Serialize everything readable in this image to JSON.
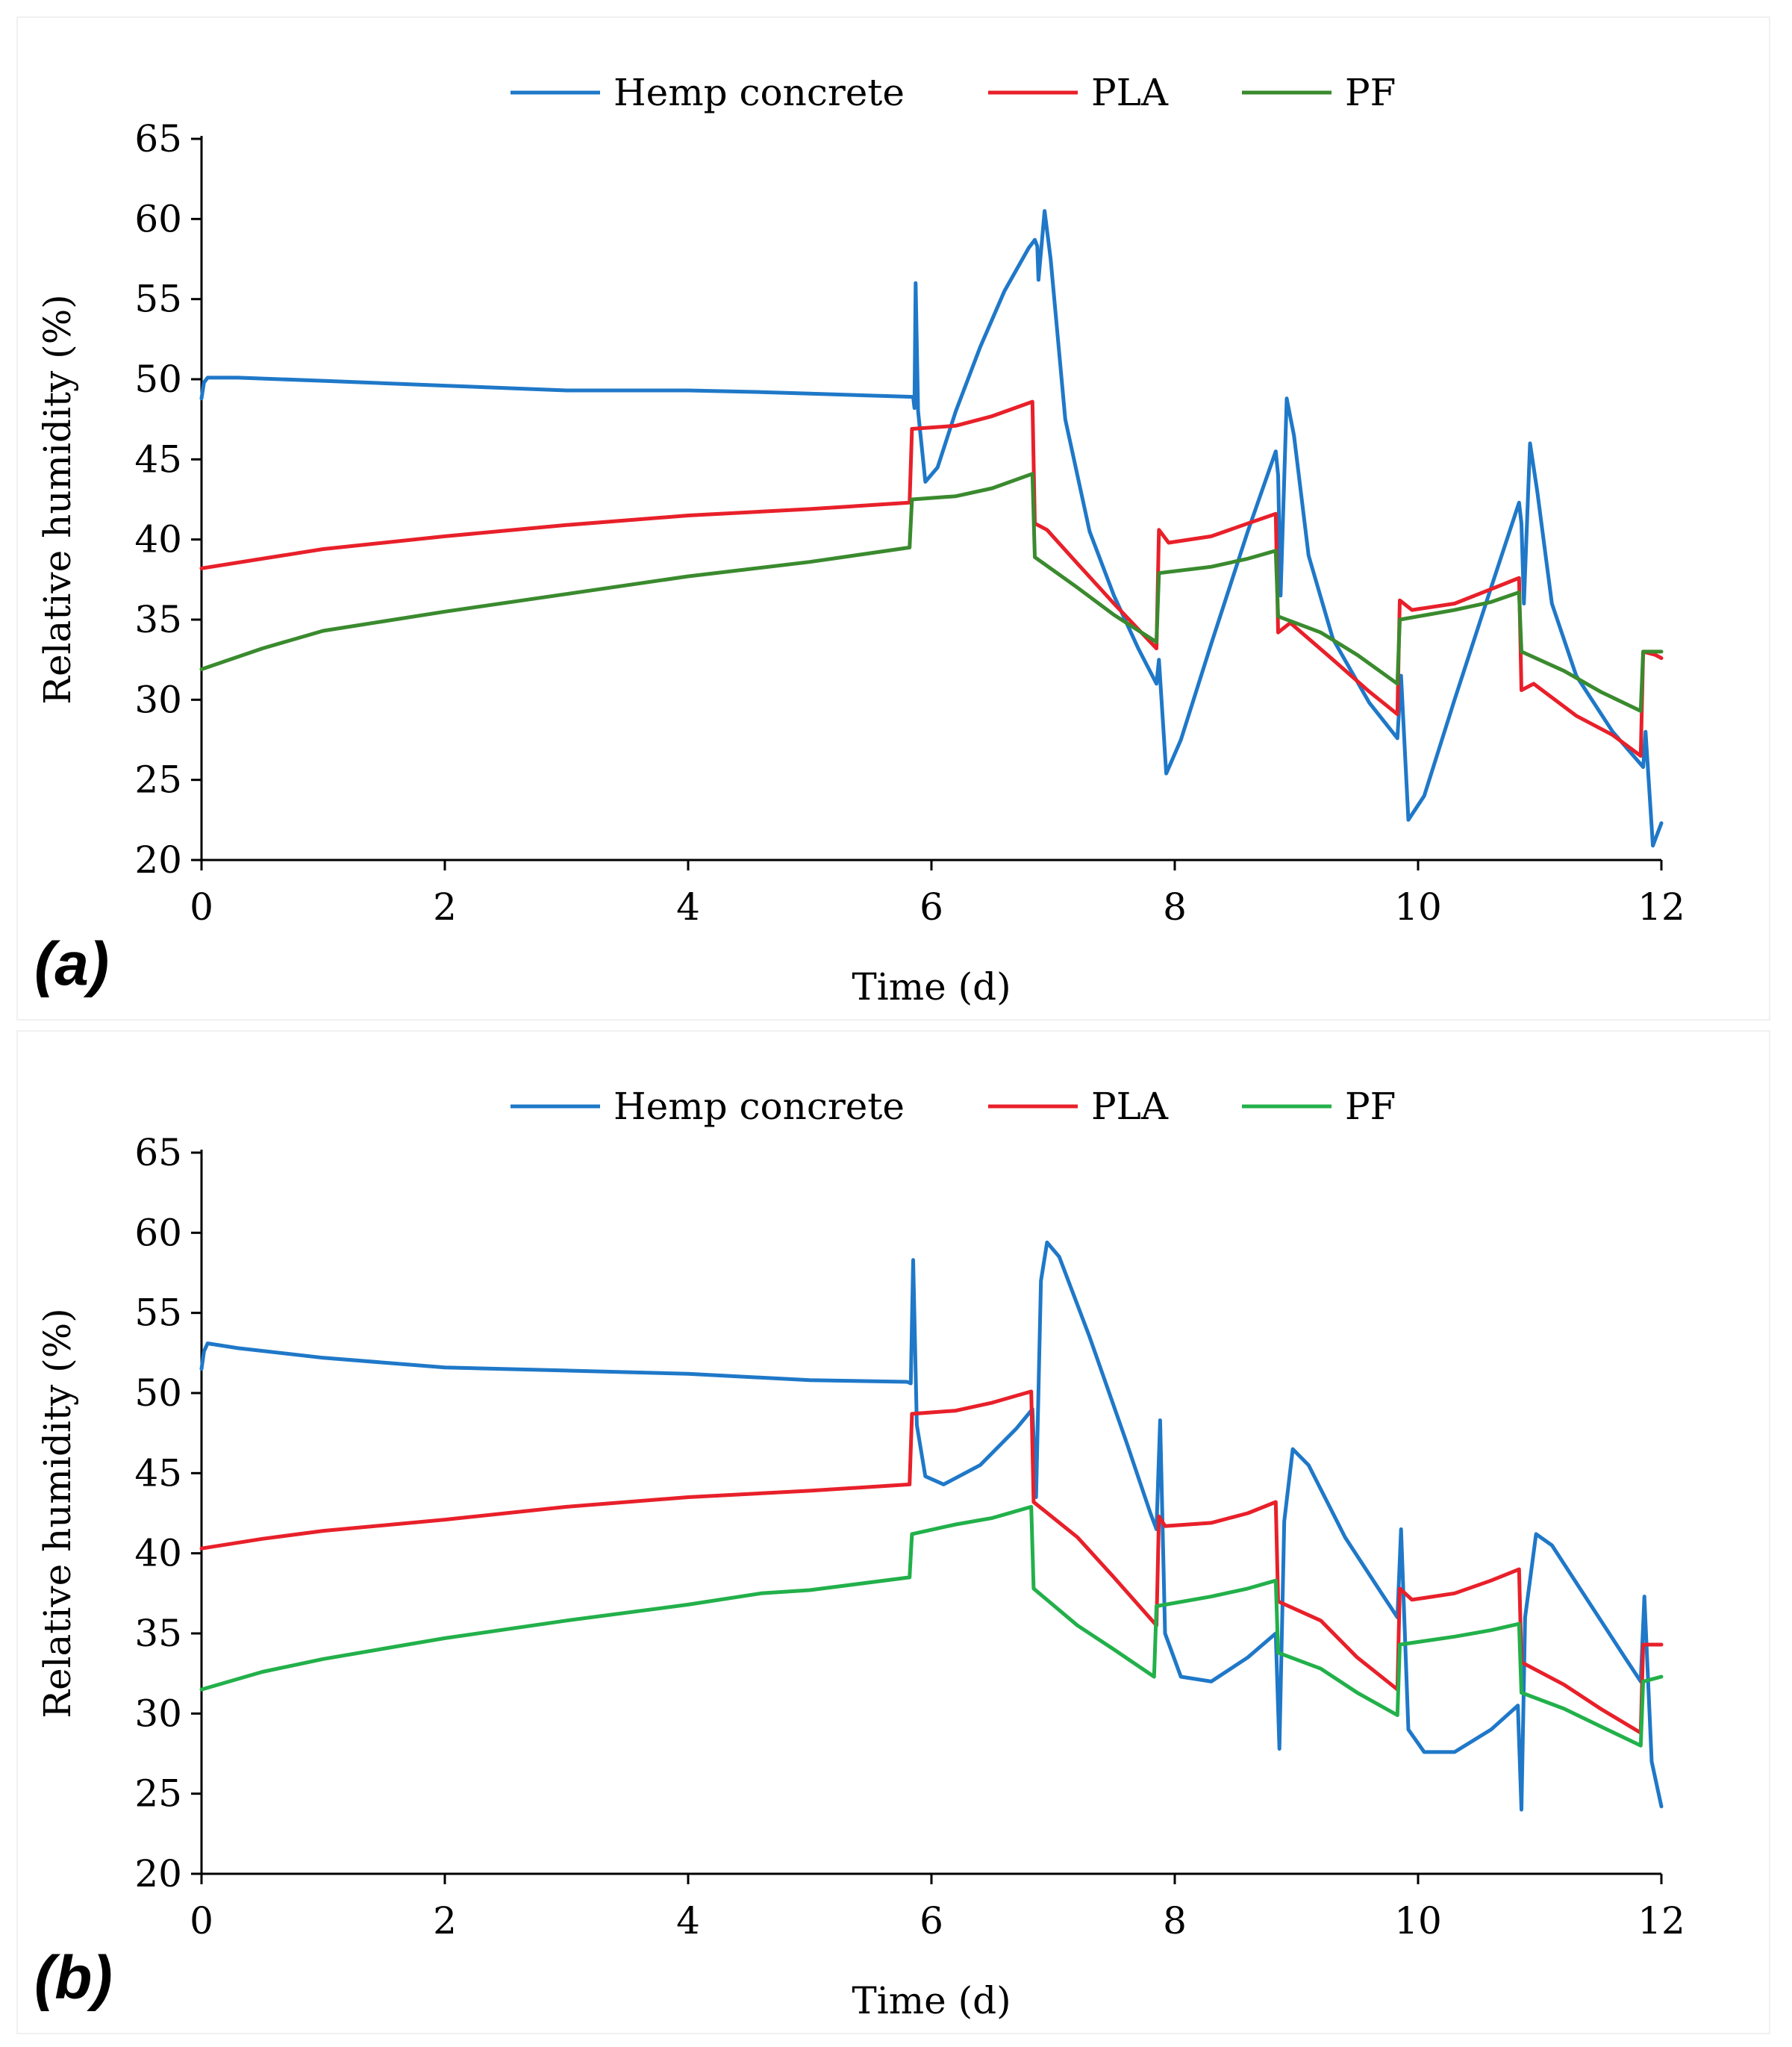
{
  "chart_data": [
    {
      "type": "line",
      "panel_label": "(a)",
      "xlabel": "Time (d)",
      "ylabel": "Relative humidity (%)",
      "xlim": [
        0,
        12
      ],
      "ylim": [
        20,
        65
      ],
      "xticks": [
        0,
        2,
        4,
        6,
        8,
        10,
        12
      ],
      "yticks": [
        20,
        25,
        30,
        35,
        40,
        45,
        50,
        55,
        60,
        65
      ],
      "grid": false,
      "legend_position": "top",
      "series": [
        {
          "name": "Hemp concrete",
          "color": "#1f78c8",
          "points": [
            [
              0,
              48.8
            ],
            [
              0.02,
              49.8
            ],
            [
              0.05,
              50.1
            ],
            [
              0.3,
              50.1
            ],
            [
              1,
              49.9
            ],
            [
              2,
              49.6
            ],
            [
              3,
              49.3
            ],
            [
              4,
              49.3
            ],
            [
              4.6,
              49.2
            ],
            [
              5,
              49.1
            ],
            [
              5.85,
              48.9
            ],
            [
              5.86,
              48.2
            ],
            [
              5.87,
              56
            ],
            [
              5.89,
              48
            ],
            [
              5.95,
              43.6
            ],
            [
              6.05,
              44.5
            ],
            [
              6.2,
              48
            ],
            [
              6.4,
              52
            ],
            [
              6.6,
              55.5
            ],
            [
              6.8,
              58.2
            ],
            [
              6.85,
              58.7
            ],
            [
              6.87,
              58.3
            ],
            [
              6.88,
              56.2
            ],
            [
              6.93,
              60.5
            ],
            [
              6.98,
              57.5
            ],
            [
              7.1,
              47.5
            ],
            [
              7.3,
              40.5
            ],
            [
              7.5,
              36.5
            ],
            [
              7.7,
              33.2
            ],
            [
              7.85,
              31
            ],
            [
              7.87,
              32.5
            ],
            [
              7.93,
              25.4
            ],
            [
              8.05,
              27.5
            ],
            [
              8.3,
              33.5
            ],
            [
              8.6,
              40.5
            ],
            [
              8.83,
              45.5
            ],
            [
              8.85,
              44
            ],
            [
              8.87,
              36.5
            ],
            [
              8.92,
              48.8
            ],
            [
              8.98,
              46.5
            ],
            [
              9.1,
              39
            ],
            [
              9.3,
              33.8
            ],
            [
              9.6,
              29.8
            ],
            [
              9.83,
              27.6
            ],
            [
              9.86,
              31.5
            ],
            [
              9.92,
              22.5
            ],
            [
              10.05,
              24
            ],
            [
              10.3,
              30
            ],
            [
              10.6,
              37
            ],
            [
              10.83,
              42.3
            ],
            [
              10.85,
              41
            ],
            [
              10.87,
              36
            ],
            [
              10.92,
              46
            ],
            [
              10.98,
              43
            ],
            [
              11.1,
              36
            ],
            [
              11.3,
              31.5
            ],
            [
              11.6,
              28
            ],
            [
              11.85,
              25.8
            ],
            [
              11.87,
              28
            ],
            [
              11.93,
              20.9
            ],
            [
              12,
              22.3
            ]
          ]
        },
        {
          "name": "PLA",
          "color": "#e8202a",
          "points": [
            [
              0,
              38.2
            ],
            [
              0.5,
              38.8
            ],
            [
              1,
              39.4
            ],
            [
              2,
              40.2
            ],
            [
              3,
              40.9
            ],
            [
              4,
              41.5
            ],
            [
              5,
              41.9
            ],
            [
              5.82,
              42.3
            ],
            [
              5.84,
              46.9
            ],
            [
              6.2,
              47.1
            ],
            [
              6.5,
              47.7
            ],
            [
              6.83,
              48.6
            ],
            [
              6.85,
              41
            ],
            [
              6.95,
              40.6
            ],
            [
              7.2,
              38.5
            ],
            [
              7.5,
              36
            ],
            [
              7.85,
              33.2
            ],
            [
              7.87,
              40.6
            ],
            [
              7.95,
              39.8
            ],
            [
              8.3,
              40.2
            ],
            [
              8.6,
              41
            ],
            [
              8.83,
              41.6
            ],
            [
              8.85,
              34.2
            ],
            [
              8.95,
              34.8
            ],
            [
              9.3,
              32.5
            ],
            [
              9.6,
              30.5
            ],
            [
              9.83,
              29.1
            ],
            [
              9.85,
              36.2
            ],
            [
              9.95,
              35.6
            ],
            [
              10.3,
              36
            ],
            [
              10.6,
              36.9
            ],
            [
              10.83,
              37.6
            ],
            [
              10.85,
              30.6
            ],
            [
              10.95,
              31
            ],
            [
              11.3,
              29
            ],
            [
              11.6,
              27.8
            ],
            [
              11.83,
              26.5
            ],
            [
              11.85,
              33
            ],
            [
              11.95,
              32.8
            ],
            [
              12,
              32.6
            ]
          ]
        },
        {
          "name": "PF",
          "color": "#3a8a2e",
          "points": [
            [
              0,
              31.9
            ],
            [
              0.5,
              33.2
            ],
            [
              1,
              34.3
            ],
            [
              2,
              35.5
            ],
            [
              3,
              36.6
            ],
            [
              4,
              37.7
            ],
            [
              5,
              38.6
            ],
            [
              5.82,
              39.5
            ],
            [
              5.84,
              42.5
            ],
            [
              6.2,
              42.7
            ],
            [
              6.5,
              43.2
            ],
            [
              6.83,
              44.1
            ],
            [
              6.85,
              38.9
            ],
            [
              7.2,
              37
            ],
            [
              7.5,
              35.3
            ],
            [
              7.85,
              33.6
            ],
            [
              7.87,
              37.9
            ],
            [
              8.3,
              38.3
            ],
            [
              8.6,
              38.8
            ],
            [
              8.83,
              39.3
            ],
            [
              8.85,
              35.2
            ],
            [
              9.2,
              34.2
            ],
            [
              9.5,
              32.8
            ],
            [
              9.83,
              31
            ],
            [
              9.85,
              35
            ],
            [
              10.3,
              35.6
            ],
            [
              10.6,
              36.1
            ],
            [
              10.83,
              36.7
            ],
            [
              10.85,
              33
            ],
            [
              11.2,
              31.8
            ],
            [
              11.5,
              30.5
            ],
            [
              11.83,
              29.3
            ],
            [
              11.85,
              33
            ],
            [
              12,
              33
            ]
          ]
        }
      ]
    },
    {
      "type": "line",
      "panel_label": "(b)",
      "xlabel": "Time (d)",
      "ylabel": "Relative humidity (%)",
      "xlim": [
        0,
        12
      ],
      "ylim": [
        20,
        65
      ],
      "xticks": [
        0,
        2,
        4,
        6,
        8,
        10,
        12
      ],
      "yticks": [
        20,
        25,
        30,
        35,
        40,
        45,
        50,
        55,
        60,
        65
      ],
      "grid": false,
      "legend_position": "top",
      "series": [
        {
          "name": "Hemp concrete",
          "color": "#1f78c8",
          "points": [
            [
              0,
              51.5
            ],
            [
              0.02,
              52.6
            ],
            [
              0.05,
              53.1
            ],
            [
              0.3,
              52.8
            ],
            [
              1,
              52.2
            ],
            [
              2,
              51.6
            ],
            [
              3,
              51.4
            ],
            [
              4,
              51.2
            ],
            [
              5,
              50.8
            ],
            [
              5.8,
              50.7
            ],
            [
              5.83,
              50.6
            ],
            [
              5.85,
              58.3
            ],
            [
              5.88,
              48
            ],
            [
              5.95,
              44.8
            ],
            [
              6.1,
              44.3
            ],
            [
              6.4,
              45.5
            ],
            [
              6.7,
              47.8
            ],
            [
              6.83,
              49
            ],
            [
              6.86,
              43.5
            ],
            [
              6.9,
              57
            ],
            [
              6.95,
              59.4
            ],
            [
              7.05,
              58.5
            ],
            [
              7.3,
              53.5
            ],
            [
              7.6,
              47
            ],
            [
              7.8,
              42.5
            ],
            [
              7.85,
              41.5
            ],
            [
              7.88,
              48.3
            ],
            [
              7.92,
              35
            ],
            [
              8.05,
              32.3
            ],
            [
              8.3,
              32
            ],
            [
              8.6,
              33.5
            ],
            [
              8.83,
              35
            ],
            [
              8.86,
              27.8
            ],
            [
              8.9,
              42
            ],
            [
              8.97,
              46.5
            ],
            [
              9.1,
              45.5
            ],
            [
              9.4,
              41
            ],
            [
              9.7,
              37.5
            ],
            [
              9.83,
              36
            ],
            [
              9.86,
              41.5
            ],
            [
              9.92,
              29
            ],
            [
              10.05,
              27.6
            ],
            [
              10.3,
              27.6
            ],
            [
              10.6,
              29
            ],
            [
              10.82,
              30.5
            ],
            [
              10.85,
              24
            ],
            [
              10.88,
              36
            ],
            [
              10.97,
              41.2
            ],
            [
              11.1,
              40.5
            ],
            [
              11.4,
              37
            ],
            [
              11.7,
              33.5
            ],
            [
              11.83,
              32
            ],
            [
              11.86,
              37.3
            ],
            [
              11.92,
              27
            ],
            [
              12,
              24.2
            ]
          ]
        },
        {
          "name": "PLA",
          "color": "#e8202a",
          "points": [
            [
              0,
              40.3
            ],
            [
              0.5,
              40.9
            ],
            [
              1,
              41.4
            ],
            [
              2,
              42.1
            ],
            [
              3,
              42.9
            ],
            [
              4,
              43.5
            ],
            [
              5,
              43.9
            ],
            [
              5.82,
              44.3
            ],
            [
              5.84,
              48.7
            ],
            [
              6.2,
              48.9
            ],
            [
              6.5,
              49.4
            ],
            [
              6.82,
              50.1
            ],
            [
              6.84,
              43.2
            ],
            [
              7.2,
              41
            ],
            [
              7.5,
              38.5
            ],
            [
              7.85,
              35.5
            ],
            [
              7.87,
              42.3
            ],
            [
              7.92,
              41.7
            ],
            [
              8.3,
              41.9
            ],
            [
              8.6,
              42.5
            ],
            [
              8.83,
              43.2
            ],
            [
              8.85,
              37
            ],
            [
              9.2,
              35.8
            ],
            [
              9.5,
              33.5
            ],
            [
              9.83,
              31.5
            ],
            [
              9.85,
              37.8
            ],
            [
              9.95,
              37.1
            ],
            [
              10.3,
              37.5
            ],
            [
              10.6,
              38.3
            ],
            [
              10.83,
              39
            ],
            [
              10.85,
              33.2
            ],
            [
              11.2,
              31.8
            ],
            [
              11.5,
              30.3
            ],
            [
              11.83,
              28.8
            ],
            [
              11.85,
              34.3
            ],
            [
              12,
              34.3
            ]
          ]
        },
        {
          "name": "PF",
          "color": "#22b04a",
          "points": [
            [
              0,
              31.5
            ],
            [
              0.5,
              32.6
            ],
            [
              1,
              33.4
            ],
            [
              2,
              34.7
            ],
            [
              3,
              35.8
            ],
            [
              4,
              36.8
            ],
            [
              4.6,
              37.5
            ],
            [
              5,
              37.7
            ],
            [
              5.82,
              38.5
            ],
            [
              5.84,
              41.2
            ],
            [
              6.2,
              41.8
            ],
            [
              6.5,
              42.2
            ],
            [
              6.82,
              42.9
            ],
            [
              6.84,
              37.8
            ],
            [
              7.2,
              35.5
            ],
            [
              7.5,
              34
            ],
            [
              7.83,
              32.3
            ],
            [
              7.85,
              36.7
            ],
            [
              8.3,
              37.3
            ],
            [
              8.6,
              37.8
            ],
            [
              8.83,
              38.3
            ],
            [
              8.85,
              33.8
            ],
            [
              9.2,
              32.8
            ],
            [
              9.5,
              31.3
            ],
            [
              9.83,
              29.9
            ],
            [
              9.85,
              34.3
            ],
            [
              10.3,
              34.8
            ],
            [
              10.6,
              35.2
            ],
            [
              10.83,
              35.6
            ],
            [
              10.85,
              31.3
            ],
            [
              11.2,
              30.3
            ],
            [
              11.5,
              29.2
            ],
            [
              11.83,
              28
            ],
            [
              11.85,
              32
            ],
            [
              12,
              32.3
            ]
          ]
        }
      ]
    }
  ]
}
